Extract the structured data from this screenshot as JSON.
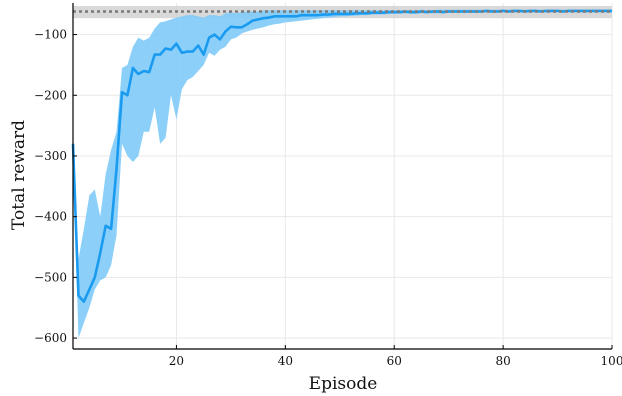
{
  "chart_data": {
    "type": "line",
    "title": "",
    "xlabel": "Episode",
    "ylabel": "Total reward",
    "xlim": [
      1,
      100
    ],
    "ylim": [
      -618,
      -48
    ],
    "grid": true,
    "legend": "none",
    "xticks": [
      20,
      40,
      60,
      80,
      100
    ],
    "xtick_labels": [
      "20",
      "40",
      "60",
      "80",
      "100"
    ],
    "yticks": [
      -100,
      -200,
      -300,
      -400,
      -500,
      -600
    ],
    "ytick_labels": [
      "−100",
      "−200",
      "−300",
      "−400",
      "−500",
      "−600"
    ],
    "reference": {
      "value": -62,
      "band": [
        -73,
        -53
      ]
    },
    "x": [
      1,
      2,
      3,
      4,
      5,
      6,
      7,
      8,
      9,
      10,
      11,
      12,
      13,
      14,
      15,
      16,
      17,
      18,
      19,
      20,
      21,
      22,
      23,
      24,
      25,
      26,
      27,
      28,
      29,
      30,
      31,
      32,
      33,
      34,
      35,
      36,
      37,
      38,
      39,
      40,
      41,
      42,
      43,
      44,
      45,
      46,
      47,
      48,
      49,
      50,
      51,
      52,
      53,
      54,
      55,
      56,
      57,
      58,
      59,
      60,
      61,
      62,
      63,
      64,
      65,
      66,
      67,
      68,
      69,
      70,
      71,
      72,
      73,
      74,
      75,
      76,
      77,
      78,
      79,
      80,
      81,
      82,
      83,
      84,
      85,
      86,
      87,
      88,
      89,
      90,
      91,
      92,
      93,
      94,
      95,
      96,
      97,
      98,
      99,
      100
    ],
    "series": [
      {
        "values": [
          -280,
          -530,
          -540,
          -520,
          -500,
          -460,
          -415,
          -420,
          -320,
          -195,
          -200,
          -155,
          -165,
          -160,
          -162,
          -133,
          -133,
          -123,
          -125,
          -115,
          -130,
          -128,
          -128,
          -118,
          -133,
          -105,
          -100,
          -108,
          -95,
          -87,
          -88,
          -88,
          -83,
          -77,
          -75,
          -73,
          -72,
          -70,
          -70,
          -70,
          -70,
          -70,
          -68,
          -68,
          -68,
          -68,
          -67,
          -67,
          -66,
          -66,
          -66,
          -66,
          -65,
          -65,
          -65,
          -64,
          -64,
          -64,
          -63,
          -63,
          -63,
          -62,
          -63,
          -63,
          -62,
          -63,
          -62,
          -62,
          -63,
          -62,
          -62,
          -62,
          -62,
          -62,
          -62,
          -62,
          -61,
          -62,
          -62,
          -61,
          -62,
          -61,
          -61,
          -62,
          -61,
          -61,
          -62,
          -61,
          -61,
          -61,
          -62,
          -61,
          -61,
          -61,
          -61,
          -61,
          -61,
          -61,
          -61,
          -61
        ],
        "lower": [
          -282,
          -600,
          -575,
          -550,
          -520,
          -505,
          -500,
          -480,
          -430,
          -280,
          -300,
          -310,
          -300,
          -260,
          -260,
          -220,
          -280,
          -270,
          -200,
          -240,
          -190,
          -175,
          -170,
          -160,
          -150,
          -130,
          -135,
          -125,
          -120,
          -108,
          -105,
          -98,
          -95,
          -92,
          -90,
          -88,
          -85,
          -83,
          -82,
          -80,
          -79,
          -78,
          -77,
          -76,
          -75,
          -74,
          -73,
          -72,
          -71,
          -70,
          -70,
          -69,
          -69,
          -68,
          -68,
          -67,
          -67,
          -67,
          -66,
          -66,
          -66,
          -65,
          -66,
          -66,
          -65,
          -65,
          -65,
          -65,
          -65,
          -64,
          -64,
          -64,
          -64,
          -64,
          -64,
          -64,
          -63,
          -64,
          -64,
          -63,
          -64,
          -63,
          -63,
          -64,
          -63,
          -63,
          -64,
          -63,
          -63,
          -63,
          -64,
          -63,
          -63,
          -63,
          -63,
          -63,
          -63,
          -63,
          -63,
          -63
        ],
        "upper": [
          -278,
          -470,
          -420,
          -365,
          -355,
          -400,
          -330,
          -290,
          -260,
          -155,
          -150,
          -120,
          -105,
          -110,
          -105,
          -90,
          -80,
          -78,
          -75,
          -72,
          -70,
          -68,
          -68,
          -70,
          -72,
          -68,
          -68,
          -70,
          -65,
          -63,
          -65,
          -63,
          -62,
          -62,
          -62,
          -60,
          -60,
          -60,
          -60,
          -60,
          -60,
          -60,
          -60,
          -60,
          -60,
          -60,
          -60,
          -60,
          -60,
          -60,
          -60,
          -60,
          -60,
          -60,
          -60,
          -60,
          -60,
          -60,
          -60,
          -60,
          -60,
          -60,
          -60,
          -60,
          -59,
          -60,
          -60,
          -59,
          -59,
          -59,
          -59,
          -59,
          -59,
          -59,
          -59,
          -59,
          -59,
          -59,
          -59,
          -59,
          -59,
          -59,
          -59,
          -59,
          -59,
          -59,
          -59,
          -59,
          -59,
          -59,
          -59,
          -59,
          -59,
          -59,
          -59,
          -59,
          -59,
          -59,
          -59,
          -59
        ]
      }
    ],
    "colors": {
      "line": "#1a9bf0",
      "band": "#80cbfa",
      "reference_line": "#7a7a7a",
      "reference_band": "#d0d0d0",
      "grid": "#e8e8e8",
      "axis": "#000000"
    }
  }
}
